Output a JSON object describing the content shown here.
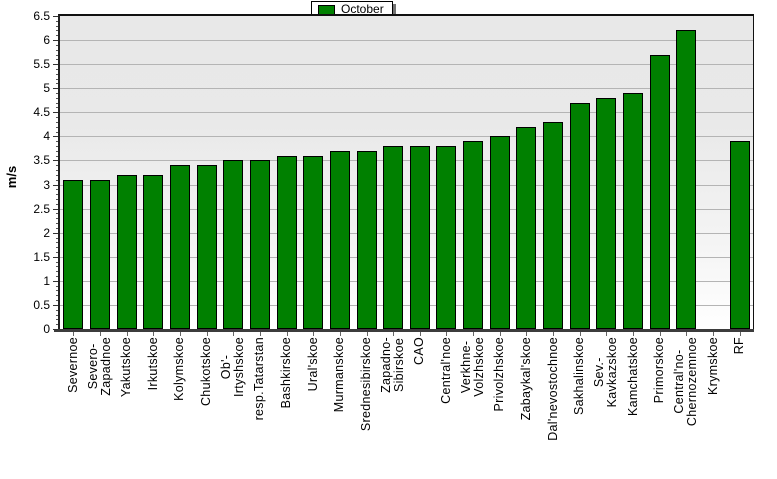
{
  "page": {
    "background": "#ffffff"
  },
  "chart_data": {
    "type": "bar",
    "title": "",
    "ylabel": "m/s",
    "xlabel": "",
    "legend_position": "top-center",
    "legend": [
      {
        "label": "October",
        "color": "#008000"
      }
    ],
    "ylim": [
      0,
      6.5
    ],
    "ytick_step": 0.5,
    "ytick_labels": [
      "0",
      "0.5",
      "1",
      "1.5",
      "2",
      "2.5",
      "3",
      "3.5",
      "4",
      "4.5",
      "5",
      "5.5",
      "6",
      "6.5"
    ],
    "grid": "horizontal",
    "grid_color": "#b4b4b4",
    "bar_color": "#008000",
    "bar_border_color": "#000000",
    "categories": [
      "Severnoe",
      "Severo-\nZapadnoe",
      "Yakutskoe",
      "Irkutskoe",
      "Kolymskoe",
      "Chukotskoe",
      "Ob'-\nIrtyshskoe",
      "resp.Tatarstan",
      "Bashkirskoe",
      "Ural'skoe",
      "Murmanskoe",
      "Srednesibirskoe",
      "Zapadno-\nSibirskoe",
      "CAO",
      "Central'noe",
      "Verkhne-\nVolzhskoe",
      "Privolzhskoe",
      "Zabaykal'skoe",
      "Dal'nevostochnoe",
      "Sakhalinskoe",
      "Sev.-\nKavkazskoe",
      "Kamchatskoe",
      "Primorskoe",
      "Central'no-\nChernozemnoe",
      "Krymskoe",
      "RF"
    ],
    "series": [
      {
        "name": "October",
        "values": [
          3.1,
          3.1,
          3.2,
          3.2,
          3.4,
          3.4,
          3.5,
          3.5,
          3.6,
          3.6,
          3.7,
          3.7,
          3.8,
          3.8,
          3.8,
          3.9,
          4.0,
          4.2,
          4.3,
          4.7,
          4.8,
          4.9,
          5.7,
          6.2,
          null,
          3.9
        ]
      }
    ]
  }
}
